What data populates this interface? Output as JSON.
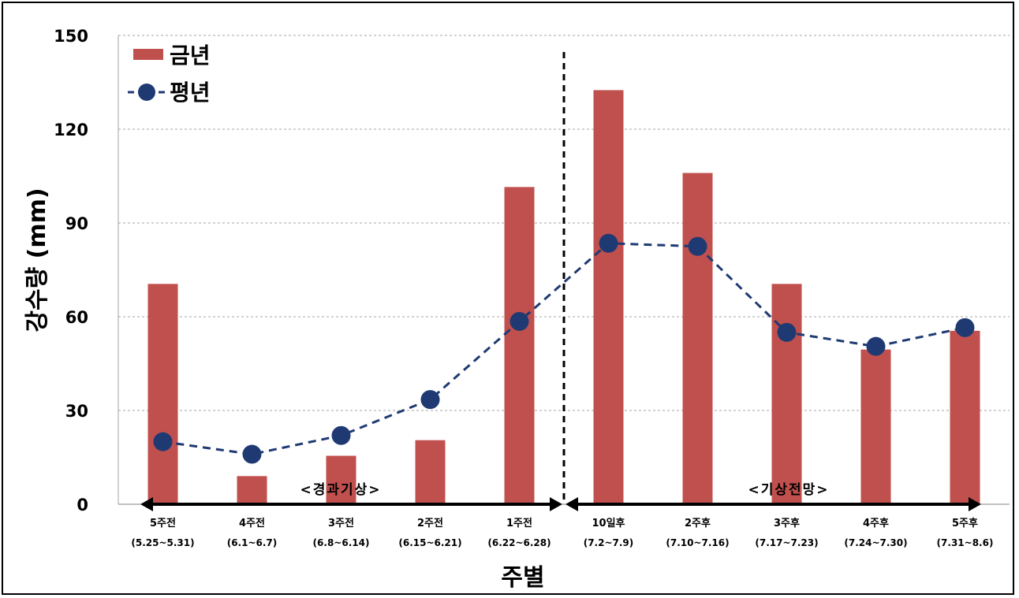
{
  "chart_data": {
    "type": "bar",
    "categories": [
      "5주전",
      "4주전",
      "3주전",
      "2주전",
      "1주전",
      "10일후",
      "2주후",
      "3주후",
      "4주후",
      "5주후"
    ],
    "date_ranges": [
      "(5.25~5.31)",
      "(6.1~6.7)",
      "(6.8~6.14)",
      "(6.15~6.21)",
      "(6.22~6.28)",
      "(7.2~7.9)",
      "(7.10~7.16)",
      "(7.17~7.23)",
      "(7.24~7.30)",
      "(7.31~8.6)"
    ],
    "series": [
      {
        "name": "금년",
        "kind": "bar",
        "color": "#c0504d",
        "values": [
          70.5,
          9,
          15.5,
          20.5,
          101.5,
          132.5,
          106,
          70.5,
          49.5,
          55.5
        ]
      },
      {
        "name": "평년",
        "kind": "line",
        "color": "#1f3a73",
        "line_style": "dashed",
        "values": [
          20,
          16,
          22,
          33.5,
          58.5,
          83.5,
          82.5,
          55,
          50.5,
          56.5
        ]
      }
    ],
    "xlabel": "주별",
    "ylabel": "강수량 (mm)",
    "ylim": [
      0,
      150
    ],
    "yticks": [
      0,
      30,
      60,
      90,
      120,
      150
    ],
    "grid": true,
    "legend_position": "top-left",
    "period_labels": [
      "<경과기상>",
      "<기상전망>"
    ]
  }
}
